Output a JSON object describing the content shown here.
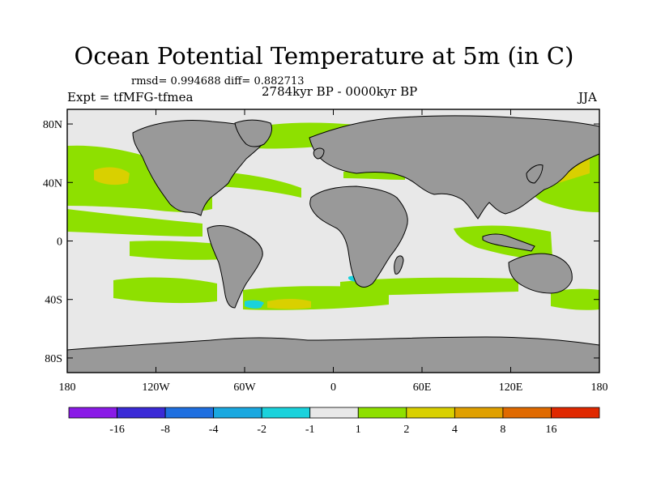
{
  "title": "Ocean Potential Temperature at 5m (in C)",
  "stats": "rmsd= 0.994688 diff= 0.882713",
  "experiment": "Expt = tfMFG-tfmea",
  "period": "2784kyr BP - 0000kyr BP",
  "season": "JJA",
  "chart_data": {
    "type": "heatmap",
    "title": "Ocean Potential Temperature at 5m (in C)",
    "variable": "ocean potential temperature difference at 5m",
    "units": "C",
    "x_axis": {
      "range": [
        -180,
        180
      ],
      "ticks": [
        -180,
        -120,
        -60,
        0,
        60,
        120,
        180
      ],
      "tick_labels": [
        "180",
        "120W",
        "60W",
        "0",
        "60E",
        "120E",
        "180"
      ]
    },
    "y_axis": {
      "range": [
        -90,
        90
      ],
      "ticks": [
        80,
        40,
        0,
        -40,
        -80
      ],
      "tick_labels": [
        "80N",
        "40N",
        "0",
        "40S",
        "80S"
      ]
    },
    "colorbar": {
      "levels": [
        "-16",
        "-8",
        "-4",
        "-2",
        "-1",
        "1",
        "2",
        "4",
        "8",
        "16"
      ],
      "colors": [
        "#8a1ae6",
        "#3b2ad6",
        "#1f6fe0",
        "#1aa8e0",
        "#1ad2dc",
        "#e8e8e8",
        "#8ee000",
        "#d9d000",
        "#e0a000",
        "#e06a00",
        "#e02800"
      ]
    },
    "regions": [
      {
        "name": "north-pacific-warm-band",
        "class": "1-2",
        "color": "#8ee000"
      },
      {
        "name": "kuroshio-extension",
        "class": "2-4",
        "color": "#d9d000"
      },
      {
        "name": "southern-ocean-band",
        "class": "1-2",
        "color": "#8ee000"
      },
      {
        "name": "south-atlantic-patch",
        "class": "2-4",
        "color": "#d9d000"
      },
      {
        "name": "nordic-seas",
        "class": "1-2",
        "color": "#8ee000"
      },
      {
        "name": "equatorial-eastern-pacific",
        "class": "1-2",
        "color": "#8ee000"
      },
      {
        "name": "indian-ocean-east",
        "class": "1-2",
        "color": "#8ee000"
      },
      {
        "name": "brazil-malvinas-confluence",
        "class": "-2 to -1",
        "color": "#1ad2dc"
      }
    ],
    "land_color": "#999999",
    "background_color": "#e8e8e8"
  }
}
